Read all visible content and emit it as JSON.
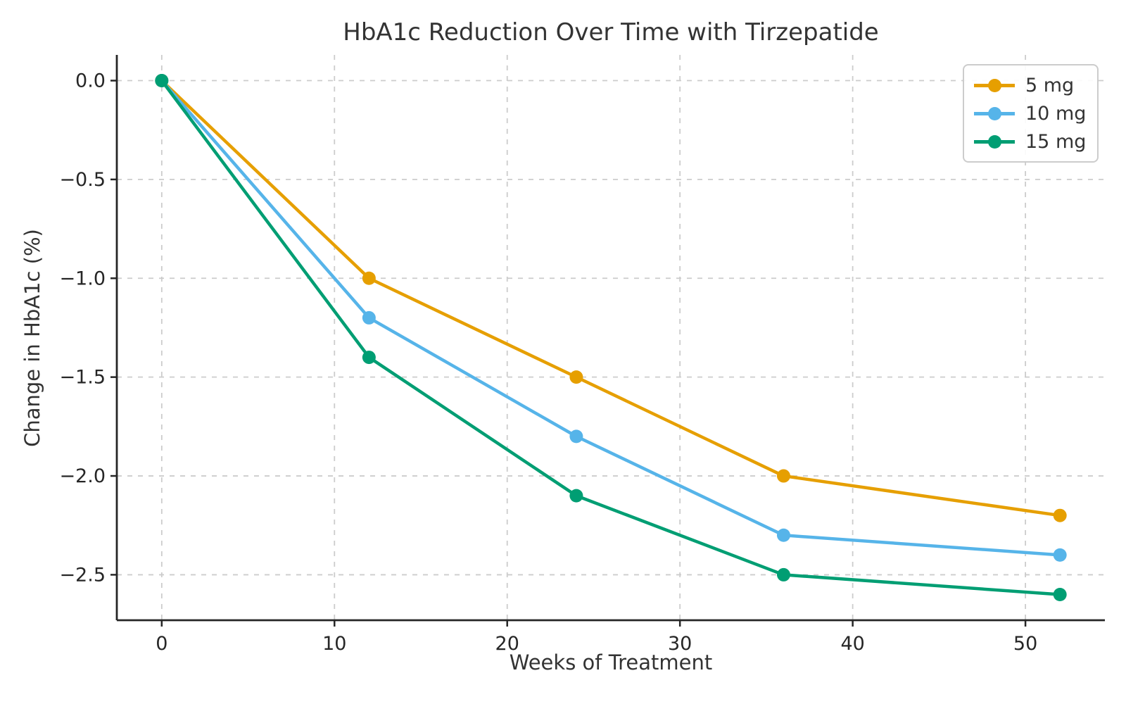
{
  "chart_data": {
    "type": "line",
    "title": "HbA1c Reduction Over Time with Tirzepatide",
    "xlabel": "Weeks of Treatment",
    "ylabel": "Change in HbA1c (%)",
    "x": [
      0,
      12,
      24,
      36,
      52
    ],
    "series": [
      {
        "name": "5 mg",
        "color": "#E69F00",
        "values": [
          0.0,
          -1.0,
          -1.5,
          -2.0,
          -2.2
        ]
      },
      {
        "name": "10 mg",
        "color": "#56B4E9",
        "values": [
          0.0,
          -1.2,
          -1.8,
          -2.3,
          -2.4
        ]
      },
      {
        "name": "15 mg",
        "color": "#009E73",
        "values": [
          0.0,
          -1.4,
          -2.1,
          -2.5,
          -2.6
        ]
      }
    ],
    "xlim": [
      -2.6,
      54.6
    ],
    "ylim": [
      -2.73,
      0.13
    ],
    "xticks": [
      0,
      10,
      20,
      30,
      40,
      50
    ],
    "xtick_labels": [
      "0",
      "10",
      "20",
      "30",
      "40",
      "50"
    ],
    "yticks": [
      0.0,
      -0.5,
      -1.0,
      -1.5,
      -2.0,
      -2.5
    ],
    "ytick_labels": [
      "0.0",
      "−0.5",
      "−1.0",
      "−1.5",
      "−2.0",
      "−2.5"
    ],
    "grid": true,
    "grid_color": "#cccccc",
    "marker": "circle",
    "legend": {
      "position": "upper right"
    }
  }
}
